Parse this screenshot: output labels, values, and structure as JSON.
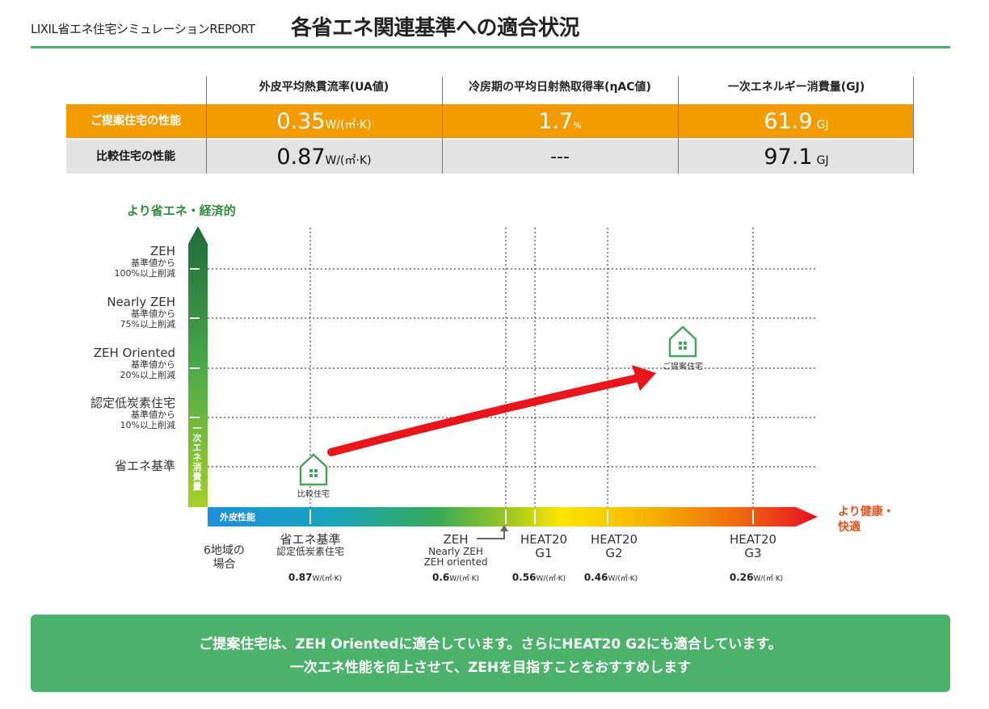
{
  "header": {
    "brand": "LIXIL省エネ住宅シミュレーションREPORT",
    "title": "各省エネ関連基準への適合状況"
  },
  "table": {
    "columns": [
      "外皮平均熱貫流率(UA値)",
      "冷房期の平均日射熱取得率(ηAC値)",
      "一次エネルギー消費量(GJ)"
    ],
    "rows": [
      {
        "label": "ご提案住宅の性能",
        "ua": "0.35",
        "ua_unit": "W/(㎡·K)",
        "eta": "1.7",
        "eta_unit": "%",
        "energy": "61.9",
        "energy_unit": "GJ"
      },
      {
        "label": "比較住宅の性能",
        "ua": "0.87",
        "ua_unit": "W/(㎡·K)",
        "eta": "---",
        "eta_unit": "",
        "energy": "97.1",
        "energy_unit": "GJ"
      }
    ],
    "colors": {
      "proposed": "#f39c00",
      "compare": "#e3e3e3"
    }
  },
  "chart_data": {
    "type": "scatter",
    "title": "",
    "ylabel_top": "より省エネ・経済的",
    "vertical_axis_label": "一次エネ消費量",
    "horizontal_axis_label": "外皮性能",
    "right_label_lines": [
      "より健康・",
      "快適"
    ],
    "region_label_lines": [
      "6地域の",
      "場合"
    ],
    "y_levels": [
      {
        "name": "ZEH",
        "sub1": "基準値から",
        "sub2": "100%以上削減"
      },
      {
        "name": "Nearly ZEH",
        "sub1": "基準値から",
        "sub2": "75%以上削減"
      },
      {
        "name": "ZEH Oriented",
        "sub1": "基準値から",
        "sub2": "20%以上削減"
      },
      {
        "name": "認定低炭素住宅",
        "sub1": "基準値から",
        "sub2": "10%以上削減"
      },
      {
        "name": "省エネ基準",
        "sub1": "",
        "sub2": ""
      }
    ],
    "x_levels": [
      {
        "name": "省エネ基準",
        "sub": "認定低炭素住宅",
        "value": "0.87",
        "unit": "W/(㎡·K)"
      },
      {
        "name": "ZEH",
        "sub": "Nearly ZEH",
        "sub2": "ZEH oriented",
        "value": "0.6",
        "unit": "W/(㎡·K)"
      },
      {
        "name": "HEAT20",
        "sub": "G1",
        "value": "0.56",
        "unit": "W/(㎡·K)"
      },
      {
        "name": "HEAT20",
        "sub": "G2",
        "value": "0.46",
        "unit": "W/(㎡·K)"
      },
      {
        "name": "HEAT20",
        "sub": "G3",
        "value": "0.26",
        "unit": "W/(㎡·K)"
      }
    ],
    "points": [
      {
        "name": "比較住宅",
        "ua": 0.87,
        "level": "省エネ基準"
      },
      {
        "name": "ご提案住宅",
        "ua": 0.35,
        "level": "ZEH Oriented"
      }
    ],
    "colors": {
      "arrow": "#e8161b",
      "house": "#4aa35d",
      "accent": "#4cb26b"
    }
  },
  "banner": {
    "line1": "ご提案住宅は、ZEH Orientedに適合しています。さらにHEAT20 G2にも適合しています。",
    "line2": "一次エネ性能を向上させて、ZEHを目指すことをおすすめします"
  }
}
